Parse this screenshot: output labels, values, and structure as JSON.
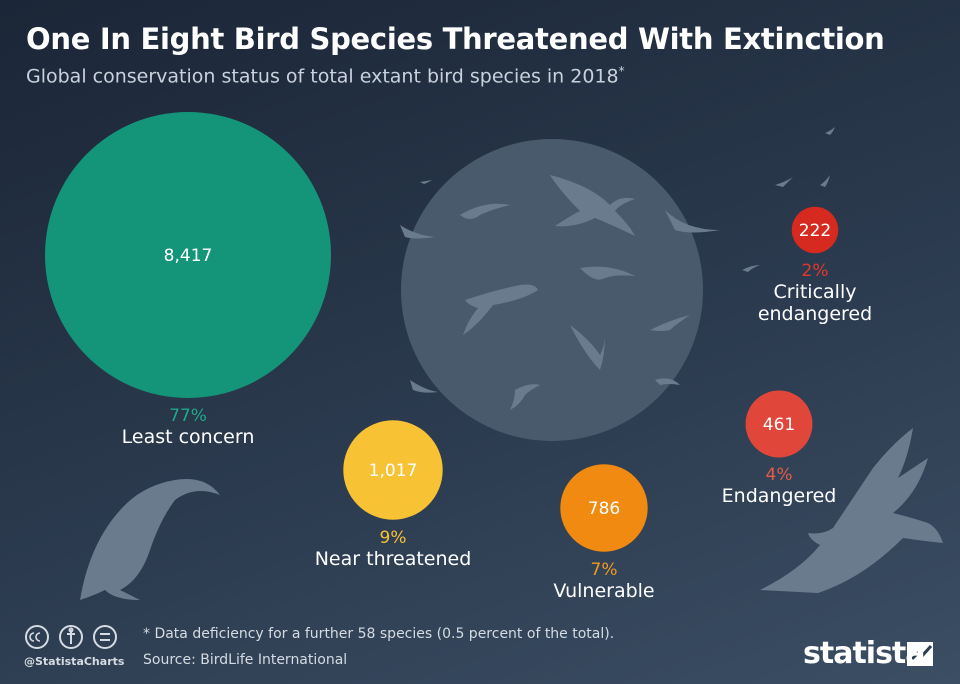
{
  "chart_data": {
    "type": "bubble",
    "title": "One In Eight Bird Species Threatened With Extinction",
    "subtitle": "Global conservation status of total extant bird species in 2018",
    "subtitle_marker": "*",
    "categories": [
      "Least concern",
      "Near threatened",
      "Vulnerable",
      "Endangered",
      "Critically endangered"
    ],
    "values": [
      8417,
      1017,
      786,
      461,
      222
    ],
    "value_labels": [
      "8,417",
      "1,017",
      "786",
      "461",
      "222"
    ],
    "shares": [
      77,
      9,
      7,
      4,
      2
    ],
    "share_labels": [
      "77%",
      "9%",
      "7%",
      "4%",
      "2%"
    ],
    "colors": [
      "#14957a",
      "#f7c234",
      "#f08a10",
      "#e0473a",
      "#d6291f"
    ],
    "share_colors": [
      "#1fa88b",
      "#f7c234",
      "#f39a1e",
      "#e65a48",
      "#e0392c"
    ],
    "footnote": "* Data deficiency for a further 58 species (0.5 percent of the total).",
    "source": "Source: BirdLife International",
    "credit": "@StatistaCharts",
    "brand": "statista"
  }
}
